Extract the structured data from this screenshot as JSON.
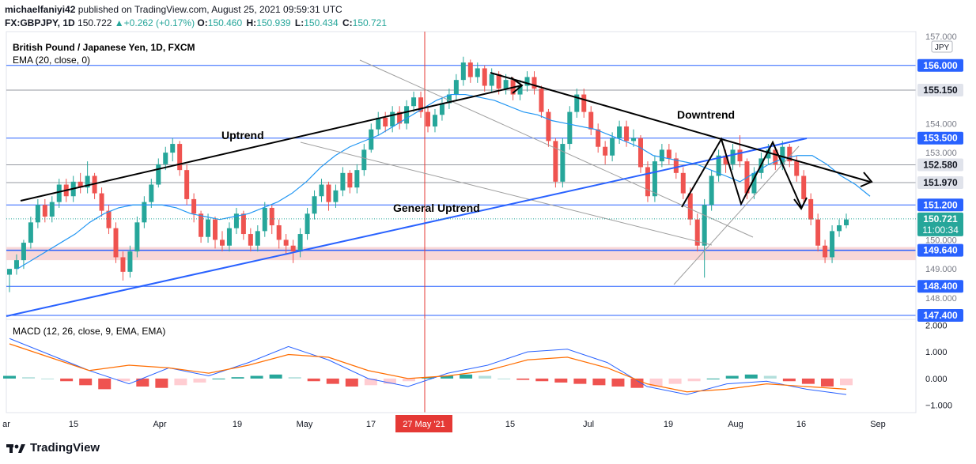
{
  "header": {
    "publisher": "michaelfaniyi42",
    "publish_text": " published on TradingView.com, August 25, 2021 09:59:31 UTC",
    "symbol": "FX:GBPJPY, 1D",
    "last": "150.722",
    "change": "+0.262 (+0.17%)",
    "o_label": "O:",
    "o_value": "150.460",
    "h_label": "H:",
    "h_value": "150.939",
    "l_label": "L:",
    "l_value": "150.434",
    "c_label": "C:",
    "c_value": "150.721"
  },
  "legend": {
    "instrument": "British Pound / Japanese Yen, 1D, FXCM",
    "ema": "EMA (20, close, 0)",
    "macd": "MACD (12, 26, close, 9, EMA, EMA)"
  },
  "annotations": {
    "uptrend": "Uptrend",
    "downtrend": "Downtrend",
    "general_uptrend": "General Uptrend"
  },
  "price_axis": {
    "currency": "JPY",
    "ticks": [
      "157.000",
      "156.000",
      "155.150",
      "154.000",
      "153.500",
      "153.000",
      "152.580",
      "151.970",
      "151.200",
      "150.721",
      "150.000",
      "149.640",
      "149.000",
      "148.400",
      "148.000",
      "147.400"
    ]
  },
  "level_badges": [
    {
      "value": 156.0,
      "label": "156.000",
      "style": "blue"
    },
    {
      "value": 155.15,
      "label": "155.150",
      "style": "gray"
    },
    {
      "value": 153.5,
      "label": "153.500",
      "style": "blue"
    },
    {
      "value": 152.58,
      "label": "152.580",
      "style": "gray"
    },
    {
      "value": 151.97,
      "label": "151.970",
      "style": "gray"
    },
    {
      "value": 151.2,
      "label": "151.200",
      "style": "blue"
    },
    {
      "value": 149.64,
      "label": "149.640",
      "style": "blue"
    },
    {
      "value": 148.4,
      "label": "148.400",
      "style": "blue"
    },
    {
      "value": 147.4,
      "label": "147.400",
      "style": "blue"
    }
  ],
  "current_price": {
    "label": "150.721",
    "countdown": "11:00:34",
    "value": 150.721
  },
  "macd_axis": {
    "ticks": [
      "2.000",
      "1.000",
      "0.000",
      "−1.000"
    ]
  },
  "time_axis": {
    "labels": [
      "ar",
      "15",
      "Apr",
      "19",
      "May",
      "17",
      "15",
      "Jul",
      "19",
      "Aug",
      "16",
      "Sep"
    ],
    "highlight": "27 May '21"
  },
  "colors": {
    "up": "#26a69a",
    "down": "#ef5350",
    "ema": "#2196f3",
    "trend": "#000000",
    "support_zone": "#f8d7d7",
    "level_line": "#2962ff",
    "badge_blue": "#2962ff",
    "badge_gray": "#e0e3eb",
    "macd_line": "#2962ff",
    "signal_line": "#ff6d00",
    "crosshair": "#e53935",
    "current": "#26a69a"
  },
  "branding": {
    "name": "TradingView"
  },
  "chart_data": {
    "type": "candlestick",
    "title": "British Pound / Japanese Yen, 1D, FXCM",
    "ylim": [
      147.4,
      157.0
    ],
    "levels": [
      156.0,
      155.15,
      153.5,
      152.58,
      151.97,
      151.2,
      149.64,
      148.4,
      147.4
    ],
    "support_zone": [
      149.3,
      149.75
    ],
    "candles": [
      [
        148.8,
        149.0,
        149.0,
        148.2
      ],
      [
        149.0,
        149.3,
        149.5,
        148.8
      ],
      [
        149.3,
        149.9,
        150.0,
        149.0
      ],
      [
        149.9,
        150.6,
        150.8,
        149.7
      ],
      [
        150.6,
        151.2,
        151.4,
        150.4
      ],
      [
        151.2,
        150.8,
        151.4,
        150.6
      ],
      [
        150.8,
        151.3,
        151.5,
        150.6
      ],
      [
        151.3,
        151.9,
        152.1,
        151.1
      ],
      [
        151.9,
        151.5,
        152.1,
        151.3
      ],
      [
        151.5,
        152.0,
        152.2,
        151.3
      ],
      [
        152.0,
        151.8,
        152.3,
        151.6
      ],
      [
        151.8,
        152.2,
        152.7,
        151.6
      ],
      [
        152.2,
        151.6,
        152.3,
        151.4
      ],
      [
        151.6,
        151.0,
        151.8,
        150.8
      ],
      [
        151.0,
        150.4,
        151.2,
        150.2
      ],
      [
        150.4,
        149.4,
        150.6,
        149.2
      ],
      [
        149.4,
        148.9,
        149.6,
        148.6
      ],
      [
        148.9,
        149.6,
        149.8,
        148.7
      ],
      [
        149.6,
        150.6,
        150.8,
        149.4
      ],
      [
        150.6,
        151.3,
        151.5,
        150.4
      ],
      [
        151.3,
        151.9,
        152.1,
        151.1
      ],
      [
        151.9,
        152.6,
        152.8,
        151.8
      ],
      [
        152.6,
        153.0,
        153.2,
        152.4
      ],
      [
        153.0,
        153.3,
        153.5,
        152.7
      ],
      [
        153.3,
        152.4,
        153.4,
        152.2
      ],
      [
        152.4,
        151.4,
        152.6,
        151.2
      ],
      [
        151.4,
        150.9,
        151.6,
        150.6
      ],
      [
        150.9,
        150.1,
        151.0,
        149.9
      ],
      [
        150.1,
        150.7,
        150.9,
        149.9
      ],
      [
        150.7,
        150.0,
        150.8,
        149.7
      ],
      [
        150.0,
        149.8,
        150.3,
        149.6
      ],
      [
        149.8,
        150.4,
        150.6,
        149.6
      ],
      [
        150.4,
        150.9,
        151.1,
        150.2
      ],
      [
        150.9,
        150.2,
        151.0,
        150.0
      ],
      [
        150.2,
        149.8,
        150.4,
        149.6
      ],
      [
        149.8,
        150.3,
        150.5,
        149.6
      ],
      [
        150.3,
        151.1,
        151.3,
        150.1
      ],
      [
        151.1,
        150.5,
        151.2,
        150.2
      ],
      [
        150.5,
        150.0,
        150.7,
        149.7
      ],
      [
        150.0,
        149.8,
        150.2,
        149.5
      ],
      [
        149.8,
        149.6,
        150.0,
        149.2
      ],
      [
        149.6,
        150.2,
        150.4,
        149.4
      ],
      [
        150.2,
        150.9,
        151.1,
        150.0
      ],
      [
        150.9,
        151.5,
        151.7,
        150.7
      ],
      [
        151.5,
        151.9,
        152.1,
        151.3
      ],
      [
        151.9,
        151.3,
        152.0,
        151.0
      ],
      [
        151.3,
        151.7,
        151.9,
        151.1
      ],
      [
        151.7,
        152.3,
        152.5,
        151.5
      ],
      [
        152.3,
        151.8,
        152.4,
        151.6
      ],
      [
        151.8,
        152.4,
        152.6,
        151.6
      ],
      [
        152.4,
        153.1,
        153.3,
        152.2
      ],
      [
        153.1,
        153.8,
        154.0,
        153.0
      ],
      [
        153.8,
        154.2,
        154.4,
        153.6
      ],
      [
        154.2,
        153.9,
        154.4,
        153.7
      ],
      [
        153.9,
        154.4,
        154.6,
        153.7
      ],
      [
        154.4,
        154.0,
        154.6,
        153.8
      ],
      [
        154.0,
        154.6,
        154.8,
        153.8
      ],
      [
        154.6,
        154.9,
        155.1,
        154.4
      ],
      [
        154.9,
        154.4,
        155.1,
        154.2
      ],
      [
        154.4,
        153.9,
        154.6,
        153.7
      ],
      [
        153.9,
        154.3,
        154.5,
        153.7
      ],
      [
        154.3,
        154.7,
        154.9,
        154.1
      ],
      [
        154.7,
        155.0,
        155.2,
        154.5
      ],
      [
        155.0,
        155.5,
        155.7,
        154.8
      ],
      [
        155.5,
        156.1,
        156.3,
        155.3
      ],
      [
        156.1,
        155.6,
        156.2,
        155.4
      ],
      [
        155.6,
        155.9,
        156.1,
        155.4
      ],
      [
        155.9,
        155.3,
        156.0,
        155.1
      ],
      [
        155.3,
        155.7,
        155.9,
        155.1
      ],
      [
        155.7,
        155.2,
        155.8,
        155.0
      ],
      [
        155.2,
        155.5,
        155.7,
        155.0
      ],
      [
        155.5,
        155.0,
        155.6,
        154.8
      ],
      [
        155.0,
        155.3,
        155.5,
        154.8
      ],
      [
        155.3,
        155.6,
        155.8,
        155.1
      ],
      [
        155.6,
        155.2,
        155.8,
        155.0
      ],
      [
        155.2,
        154.4,
        155.3,
        154.2
      ],
      [
        154.4,
        153.4,
        154.5,
        153.2
      ],
      [
        153.4,
        152.0,
        153.5,
        151.8
      ],
      [
        152.0,
        153.3,
        153.5,
        151.8
      ],
      [
        153.3,
        154.4,
        154.6,
        153.1
      ],
      [
        154.4,
        155.0,
        155.2,
        154.2
      ],
      [
        155.0,
        154.4,
        155.2,
        154.2
      ],
      [
        154.4,
        153.8,
        154.6,
        153.6
      ],
      [
        153.8,
        153.2,
        154.0,
        153.0
      ],
      [
        153.2,
        152.9,
        153.4,
        152.6
      ],
      [
        152.9,
        153.5,
        153.7,
        152.7
      ],
      [
        153.5,
        153.9,
        154.1,
        153.3
      ],
      [
        153.9,
        153.4,
        154.1,
        153.2
      ],
      [
        153.4,
        153.5,
        153.8,
        153.2
      ],
      [
        153.5,
        152.5,
        153.6,
        152.3
      ],
      [
        152.5,
        151.5,
        152.7,
        151.3
      ],
      [
        151.5,
        152.7,
        152.9,
        151.3
      ],
      [
        152.7,
        153.1,
        153.3,
        152.5
      ],
      [
        153.1,
        152.8,
        153.3,
        152.6
      ],
      [
        152.8,
        152.3,
        153.0,
        152.1
      ],
      [
        152.3,
        151.6,
        152.5,
        151.4
      ],
      [
        151.6,
        150.7,
        151.8,
        150.5
      ],
      [
        150.7,
        149.8,
        150.9,
        149.6
      ],
      [
        149.8,
        151.2,
        151.4,
        148.7
      ],
      [
        151.2,
        152.2,
        152.4,
        151.0
      ],
      [
        152.2,
        152.9,
        153.1,
        152.0
      ],
      [
        152.9,
        152.6,
        153.1,
        152.3
      ],
      [
        152.6,
        153.1,
        153.3,
        152.4
      ],
      [
        153.1,
        152.7,
        153.6,
        152.5
      ],
      [
        152.7,
        151.6,
        152.8,
        151.4
      ],
      [
        151.6,
        152.3,
        152.5,
        151.4
      ],
      [
        152.3,
        152.8,
        153.0,
        152.1
      ],
      [
        152.8,
        153.1,
        153.3,
        152.6
      ],
      [
        153.1,
        152.6,
        153.2,
        152.4
      ],
      [
        152.6,
        153.2,
        153.4,
        152.4
      ],
      [
        153.2,
        152.7,
        153.3,
        152.5
      ],
      [
        152.7,
        152.2,
        152.9,
        152.0
      ],
      [
        152.2,
        151.4,
        152.4,
        151.2
      ],
      [
        151.4,
        150.7,
        151.6,
        150.5
      ],
      [
        150.7,
        149.8,
        150.9,
        149.6
      ],
      [
        149.8,
        149.4,
        150.0,
        149.2
      ],
      [
        149.4,
        150.3,
        150.5,
        149.2
      ],
      [
        150.3,
        150.5,
        150.7,
        150.1
      ],
      [
        150.5,
        150.7,
        150.9,
        150.4
      ]
    ],
    "ema": [
      149.0,
      149.3,
      149.6,
      149.9,
      150.2,
      150.6,
      150.9,
      151.1,
      151.2,
      151.2,
      151.2,
      151.1,
      150.9,
      150.8,
      150.7,
      150.8,
      150.9,
      151.1,
      151.3,
      151.6,
      152.0,
      152.5,
      152.9,
      153.2,
      153.4,
      153.6,
      153.9,
      154.2,
      154.5,
      154.8,
      155.0,
      155.0,
      154.9,
      154.8,
      154.6,
      154.4,
      154.3,
      154.1,
      154.0,
      153.9,
      153.8,
      153.6,
      153.4,
      153.2,
      152.9,
      152.8,
      152.7,
      152.6,
      152.4,
      152.2,
      152.0,
      152.3,
      152.6,
      152.8,
      152.9,
      152.9,
      152.6,
      152.2,
      151.9,
      151.5
    ],
    "macd": [
      1.5,
      0.9,
      0.3,
      -0.2,
      0.4,
      0.1,
      0.6,
      1.2,
      0.7,
      0.0,
      -0.3,
      0.2,
      0.5,
      1.0,
      1.1,
      0.6,
      -0.3,
      -0.6,
      -0.2,
      -0.1,
      -0.4,
      -0.6
    ],
    "signal": [
      1.3,
      0.8,
      0.3,
      0.5,
      0.4,
      0.2,
      0.5,
      0.9,
      0.8,
      0.3,
      0.0,
      0.1,
      0.3,
      0.7,
      0.8,
      0.4,
      -0.2,
      -0.5,
      -0.4,
      -0.2,
      -0.3,
      -0.4
    ],
    "histogram": [
      0.1,
      0.05,
      0.0,
      -0.1,
      -0.25,
      -0.4,
      -0.1,
      -0.3,
      -0.35,
      -0.25,
      -0.15,
      0.0,
      0.05,
      0.1,
      0.15,
      0.05,
      -0.1,
      -0.2,
      -0.3,
      -0.25,
      -0.2,
      -0.1,
      0.05,
      0.1,
      0.15,
      0.1,
      0.0,
      -0.05,
      -0.1,
      -0.15,
      -0.2,
      -0.25,
      -0.3,
      -0.35,
      -0.3,
      -0.2,
      -0.1,
      0.0,
      0.1,
      0.15,
      0.1,
      -0.1,
      -0.2,
      -0.3,
      -0.25
    ]
  }
}
